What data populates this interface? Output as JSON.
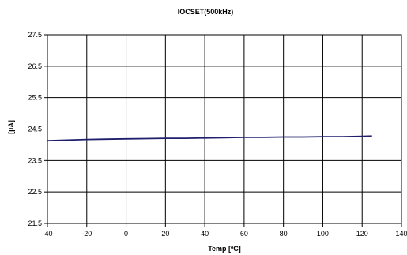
{
  "chart_data": {
    "type": "line",
    "title": "IOCSET(500kHz)",
    "xlabel": "Temp [ºC]",
    "ylabel": "[µA]",
    "xlim": [
      -40,
      140
    ],
    "ylim": [
      21.5,
      27.5
    ],
    "x_ticks": [
      -40,
      -20,
      0,
      20,
      40,
      60,
      80,
      100,
      120,
      140
    ],
    "y_ticks": [
      21.5,
      22.5,
      23.5,
      24.5,
      25.5,
      26.5,
      27.5
    ],
    "grid": true,
    "legend": "none",
    "series": [
      {
        "color": "#1f1f6e",
        "x": [
          -40,
          -30,
          -20,
          -10,
          0,
          10,
          20,
          30,
          40,
          50,
          60,
          70,
          80,
          90,
          100,
          110,
          120,
          125
        ],
        "y": [
          24.13,
          24.15,
          24.17,
          24.18,
          24.19,
          24.2,
          24.21,
          24.21,
          24.22,
          24.23,
          24.24,
          24.24,
          24.25,
          24.25,
          24.26,
          24.26,
          24.27,
          24.28
        ]
      }
    ]
  }
}
